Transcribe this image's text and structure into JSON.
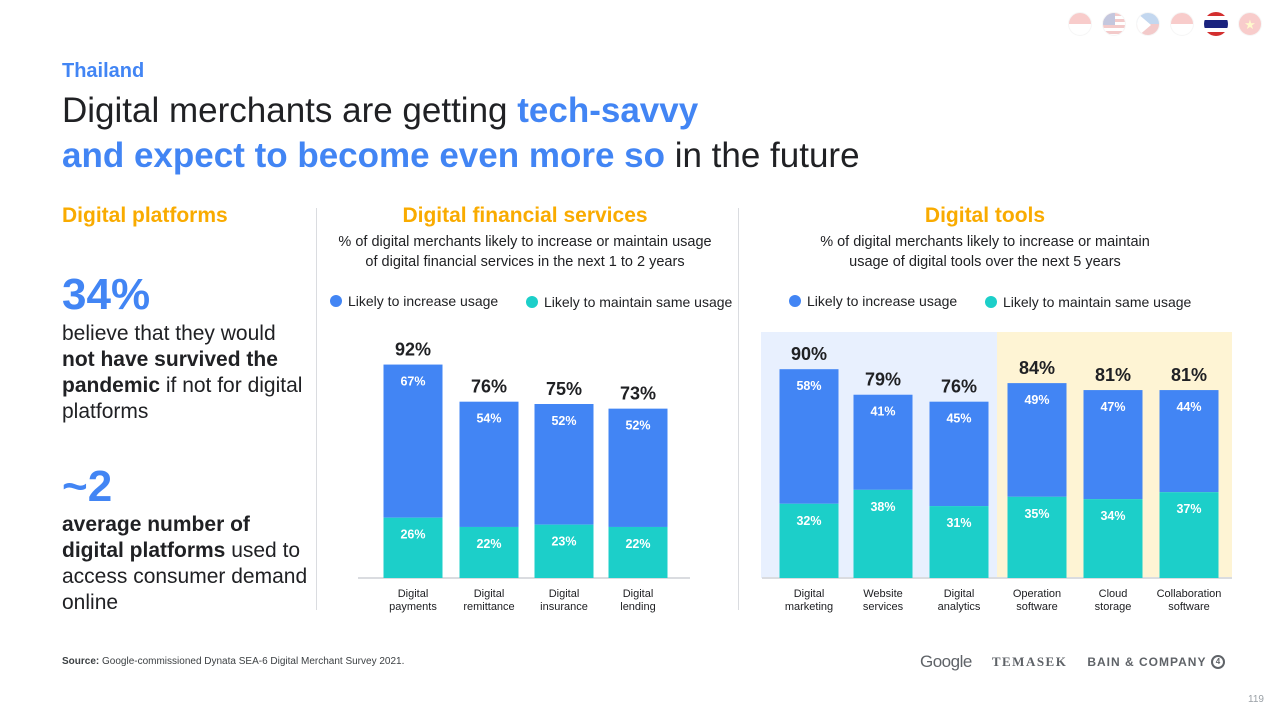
{
  "header": {
    "country": "Thailand",
    "title_line1_plain": "Digital merchants are getting ",
    "title_line1_highlight": "tech-savvy",
    "title_line2_highlight": "and expect to become even more so",
    "title_line2_plain": " in the future",
    "active_flag": "thailand-flag"
  },
  "flags": [
    "indonesia-flag",
    "malaysia-flag",
    "philippines-flag",
    "singapore-flag",
    "thailand-flag",
    "vietnam-flag"
  ],
  "digital_platforms": {
    "heading": "Digital platforms",
    "stat1_value": "34%",
    "stat1_text_a": "believe that they would ",
    "stat1_text_bold": "not have survived the pandemic",
    "stat1_text_b": " if not for digital platforms",
    "stat2_value": "~2",
    "stat2_text_bold": "average number of digital platforms",
    "stat2_text_b": " used to access consumer demand online"
  },
  "legend": {
    "increase": "Likely to increase usage",
    "maintain": "Likely to maintain same usage"
  },
  "colors": {
    "increase": "#4285f4",
    "maintain": "#1ccfc9",
    "accent": "#4285f4",
    "heading": "#f9ab00",
    "band_blue": "#e8f0fe",
    "band_yellow": "#fef4d4"
  },
  "chart_data": [
    {
      "type": "bar",
      "stacked": true,
      "title": "Digital financial services",
      "subtitle_line1": "% of digital merchants likely to increase or maintain usage",
      "subtitle_line2": "of digital financial services in the next 1 to 2 years",
      "categories": [
        [
          "Digital",
          "payments"
        ],
        [
          "Digital",
          "remittance"
        ],
        [
          "Digital",
          "insurance"
        ],
        [
          "Digital",
          "lending"
        ]
      ],
      "totals": [
        92,
        76,
        75,
        73
      ],
      "series": [
        {
          "name": "Likely to maintain same usage",
          "values": [
            26,
            22,
            23,
            22
          ]
        },
        {
          "name": "Likely to increase usage",
          "values": [
            67,
            54,
            52,
            52
          ]
        }
      ],
      "ylim": [
        0,
        100
      ]
    },
    {
      "type": "bar",
      "stacked": true,
      "title": "Digital tools",
      "subtitle_line1": "% of digital merchants likely to increase or maintain",
      "subtitle_line2": "usage of digital tools over the next 5 years",
      "categories": [
        [
          "Digital",
          "marketing"
        ],
        [
          "Website",
          "services"
        ],
        [
          "Digital",
          "analytics"
        ],
        [
          "Operation",
          "software"
        ],
        [
          "Cloud",
          "storage"
        ],
        [
          "Collaboration",
          "software"
        ]
      ],
      "totals": [
        90,
        79,
        76,
        84,
        81,
        81
      ],
      "series": [
        {
          "name": "Likely to maintain same usage",
          "values": [
            32,
            38,
            31,
            35,
            34,
            37
          ]
        },
        {
          "name": "Likely to increase usage",
          "values": [
            58,
            41,
            45,
            49,
            47,
            44
          ]
        }
      ],
      "ylim": [
        0,
        100
      ]
    }
  ],
  "footer": {
    "source_label": "Source:",
    "source_text": " Google-commissioned Dynata SEA-6 Digital Merchant Survey 2021.",
    "logo_google": "Google",
    "logo_temasek": "TEMASEK",
    "logo_bain": "BAIN & COMPANY",
    "page_number": "119"
  }
}
